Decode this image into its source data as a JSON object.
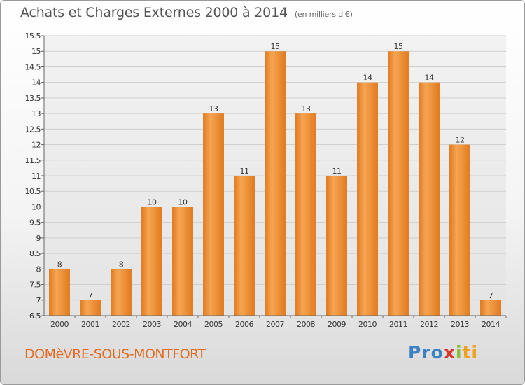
{
  "header": {
    "title": "Achats et Charges Externes 2000 à 2014",
    "subtitle": "(en milliers d'€)"
  },
  "footer": {
    "commune": "DOMèVRE-SOUS-MONTFORT",
    "logo_parts": [
      "Pro",
      "x",
      "i",
      "ti"
    ]
  },
  "colors": {
    "bar_light": "#f6a552",
    "bar_dark": "#e07a1f",
    "commune_text": "#e36a1e"
  },
  "chart_data": {
    "type": "bar",
    "title": "Achats et Charges Externes 2000 à 2014",
    "subtitle": "(en milliers d'€)",
    "categories": [
      "2000",
      "2001",
      "2002",
      "2003",
      "2004",
      "2005",
      "2006",
      "2007",
      "2008",
      "2009",
      "2010",
      "2011",
      "2012",
      "2013",
      "2014"
    ],
    "values": [
      8,
      7,
      8,
      10,
      10,
      13,
      11,
      15,
      13,
      11,
      14,
      15,
      14,
      12,
      7
    ],
    "data_labels": [
      "8",
      "7",
      "8",
      "10",
      "10",
      "13",
      "11",
      "15",
      "13",
      "11",
      "14",
      "15",
      "14",
      "12",
      "7"
    ],
    "ylim": [
      6.5,
      15.5
    ],
    "yticks": [
      6.5,
      7,
      7.5,
      8,
      8.5,
      9,
      9.5,
      10,
      10.5,
      11,
      11.5,
      12,
      12.5,
      13,
      13.5,
      14,
      14.5,
      15,
      15.5
    ],
    "ytick_labels": [
      "6.5",
      "7",
      "7.5",
      "8",
      "8.5",
      "9",
      "9.5",
      "10",
      "10.5",
      "11",
      "11.5",
      "12",
      "12.5",
      "13",
      "13.5",
      "14",
      "14.5",
      "15",
      "15.5"
    ],
    "grid": true,
    "legend": "none",
    "xlabel": "",
    "ylabel": ""
  }
}
